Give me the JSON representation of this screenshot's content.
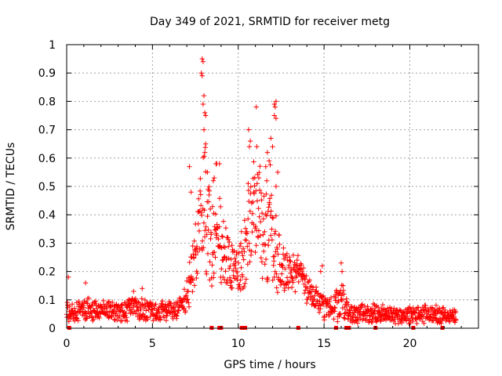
{
  "chart_data": {
    "type": "scatter",
    "title": "Day 349 of 2021, SRMTID for receiver metg",
    "xlabel": "GPS time / hours",
    "ylabel": "SRMTID / TECUs",
    "xlim": [
      0,
      24
    ],
    "ylim": [
      0,
      1
    ],
    "xticks": [
      0,
      5,
      10,
      15,
      20
    ],
    "xtick_labels": [
      "0",
      "5",
      "10",
      "15",
      "20"
    ],
    "yticks": [
      0,
      0.1,
      0.2,
      0.3,
      0.4,
      0.5,
      0.6,
      0.7,
      0.8,
      0.9,
      1
    ],
    "ytick_labels": [
      "0",
      "0.1",
      "0.2",
      "0.3",
      "0.4",
      "0.5",
      "0.6",
      "0.7",
      "0.8",
      "0.9",
      "1"
    ],
    "grid": true,
    "marker": "plus",
    "color": "#ff0000",
    "series": [
      {
        "name": "SRMTID",
        "envelope": [
          {
            "t": 0.0,
            "base": 0.06,
            "spread": 0.05
          },
          {
            "t": 0.5,
            "base": 0.06,
            "spread": 0.04
          },
          {
            "t": 1.0,
            "base": 0.07,
            "spread": 0.05
          },
          {
            "t": 2.0,
            "base": 0.065,
            "spread": 0.04
          },
          {
            "t": 3.0,
            "base": 0.06,
            "spread": 0.04
          },
          {
            "t": 4.0,
            "base": 0.075,
            "spread": 0.05
          },
          {
            "t": 5.0,
            "base": 0.06,
            "spread": 0.04
          },
          {
            "t": 6.0,
            "base": 0.065,
            "spread": 0.04
          },
          {
            "t": 6.8,
            "base": 0.08,
            "spread": 0.05
          },
          {
            "t": 7.2,
            "base": 0.16,
            "spread": 0.12
          },
          {
            "t": 7.6,
            "base": 0.3,
            "spread": 0.18
          },
          {
            "t": 8.0,
            "base": 0.45,
            "spread": 0.35
          },
          {
            "t": 8.5,
            "base": 0.3,
            "spread": 0.2
          },
          {
            "t": 9.0,
            "base": 0.28,
            "spread": 0.2
          },
          {
            "t": 9.5,
            "base": 0.22,
            "spread": 0.12
          },
          {
            "t": 10.0,
            "base": 0.2,
            "spread": 0.12
          },
          {
            "t": 10.5,
            "base": 0.32,
            "spread": 0.2
          },
          {
            "t": 11.0,
            "base": 0.4,
            "spread": 0.25
          },
          {
            "t": 11.5,
            "base": 0.38,
            "spread": 0.25
          },
          {
            "t": 12.0,
            "base": 0.35,
            "spread": 0.25
          },
          {
            "t": 12.5,
            "base": 0.2,
            "spread": 0.1
          },
          {
            "t": 13.0,
            "base": 0.2,
            "spread": 0.08
          },
          {
            "t": 13.5,
            "base": 0.2,
            "spread": 0.08
          },
          {
            "t": 14.0,
            "base": 0.14,
            "spread": 0.06
          },
          {
            "t": 14.5,
            "base": 0.11,
            "spread": 0.06
          },
          {
            "t": 15.0,
            "base": 0.07,
            "spread": 0.05
          },
          {
            "t": 15.5,
            "base": 0.08,
            "spread": 0.06
          },
          {
            "t": 16.0,
            "base": 0.1,
            "spread": 0.08
          },
          {
            "t": 16.5,
            "base": 0.05,
            "spread": 0.04
          },
          {
            "t": 18.0,
            "base": 0.05,
            "spread": 0.04
          },
          {
            "t": 20.0,
            "base": 0.045,
            "spread": 0.035
          },
          {
            "t": 21.0,
            "base": 0.05,
            "spread": 0.04
          },
          {
            "t": 22.0,
            "base": 0.045,
            "spread": 0.03
          },
          {
            "t": 22.7,
            "base": 0.045,
            "spread": 0.03
          }
        ],
        "peaks": [
          {
            "x": 7.9,
            "y": 0.95
          },
          {
            "x": 7.95,
            "y": 0.94
          },
          {
            "x": 7.85,
            "y": 0.9
          },
          {
            "x": 7.9,
            "y": 0.89
          },
          {
            "x": 8.0,
            "y": 0.82
          },
          {
            "x": 7.95,
            "y": 0.79
          },
          {
            "x": 8.05,
            "y": 0.76
          },
          {
            "x": 8.1,
            "y": 0.75
          },
          {
            "x": 8.0,
            "y": 0.7
          },
          {
            "x": 8.1,
            "y": 0.65
          },
          {
            "x": 8.05,
            "y": 0.62
          },
          {
            "x": 7.15,
            "y": 0.57
          },
          {
            "x": 8.75,
            "y": 0.58
          },
          {
            "x": 8.7,
            "y": 0.58
          },
          {
            "x": 8.9,
            "y": 0.58
          },
          {
            "x": 8.2,
            "y": 0.55
          },
          {
            "x": 8.6,
            "y": 0.53
          },
          {
            "x": 8.55,
            "y": 0.52
          },
          {
            "x": 7.25,
            "y": 0.48
          },
          {
            "x": 8.3,
            "y": 0.47
          },
          {
            "x": 10.6,
            "y": 0.7
          },
          {
            "x": 10.7,
            "y": 0.66
          },
          {
            "x": 10.65,
            "y": 0.64
          },
          {
            "x": 11.05,
            "y": 0.78
          },
          {
            "x": 12.1,
            "y": 0.79
          },
          {
            "x": 12.2,
            "y": 0.8
          },
          {
            "x": 12.15,
            "y": 0.78
          },
          {
            "x": 12.1,
            "y": 0.75
          },
          {
            "x": 12.2,
            "y": 0.74
          },
          {
            "x": 11.9,
            "y": 0.67
          },
          {
            "x": 12.0,
            "y": 0.64
          },
          {
            "x": 11.7,
            "y": 0.62
          },
          {
            "x": 11.8,
            "y": 0.59
          },
          {
            "x": 11.6,
            "y": 0.57
          },
          {
            "x": 11.2,
            "y": 0.53
          },
          {
            "x": 11.1,
            "y": 0.51
          },
          {
            "x": 10.9,
            "y": 0.48
          },
          {
            "x": 12.3,
            "y": 0.55
          },
          {
            "x": 12.2,
            "y": 0.5
          },
          {
            "x": 16.0,
            "y": 0.23
          },
          {
            "x": 16.05,
            "y": 0.2
          },
          {
            "x": 14.9,
            "y": 0.22
          },
          {
            "x": 14.8,
            "y": 0.2
          },
          {
            "x": 0.1,
            "y": 0.18
          },
          {
            "x": 1.1,
            "y": 0.16
          },
          {
            "x": 4.4,
            "y": 0.14
          },
          {
            "x": 3.9,
            "y": 0.13
          }
        ],
        "gap_markers_x": [
          0.15,
          8.45,
          8.9,
          9.0,
          10.2,
          10.3,
          10.4,
          13.5,
          15.7,
          16.3,
          16.45,
          18.0,
          20.2,
          21.9
        ]
      }
    ]
  }
}
